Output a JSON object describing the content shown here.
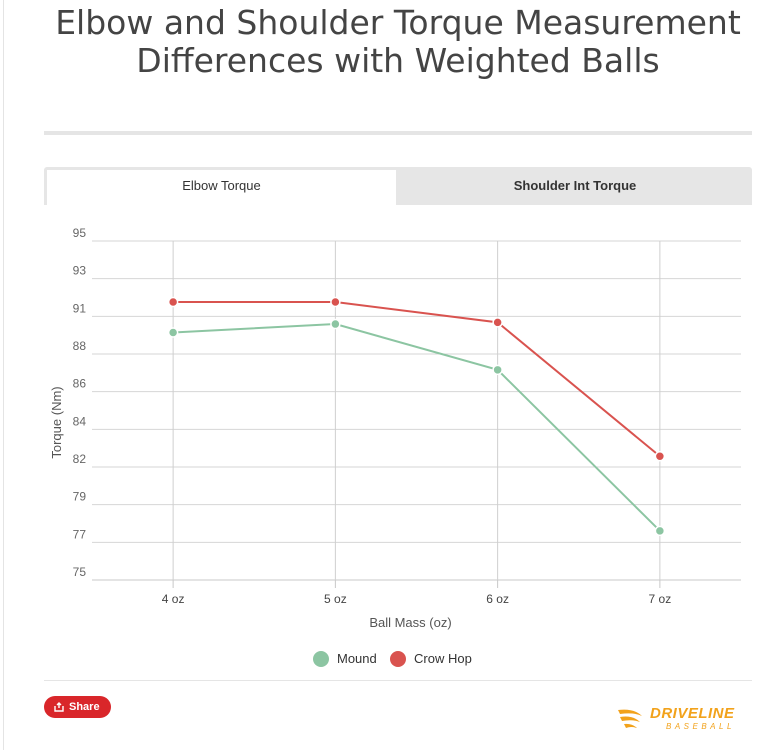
{
  "page": {
    "title": "Elbow and Shoulder Torque Measurement Differences with Weighted Balls"
  },
  "tabs": [
    {
      "label": "Elbow Torque",
      "active": true
    },
    {
      "label": "Shoulder Int Torque",
      "active": false
    }
  ],
  "share": {
    "label": "Share"
  },
  "logo": {
    "word": "DRIVELINE",
    "sub": "BASEBALL",
    "color": "#f2a21b"
  },
  "chart_data": {
    "type": "line",
    "title": "Elbow and Shoulder Torque Measurement Differences with Weighted Balls",
    "xlabel": "Ball Mass (oz)",
    "ylabel": "Torque (Nm)",
    "categories": [
      "4 oz",
      "5 oz",
      "6 oz",
      "7 oz"
    ],
    "y_ticks": [
      "95",
      "93",
      "91",
      "88",
      "86",
      "84",
      "82",
      "79",
      "77",
      "75"
    ],
    "ylim": [
      75,
      95
    ],
    "grid": true,
    "legend_position": "bottom",
    "series": [
      {
        "name": "Mound",
        "color": "#8cc5a2",
        "values": [
          89.6,
          90.1,
          87.4,
          77.9
        ]
      },
      {
        "name": "Crow Hop",
        "color": "#d9534f",
        "values": [
          91.4,
          91.4,
          90.2,
          82.3
        ]
      }
    ]
  }
}
